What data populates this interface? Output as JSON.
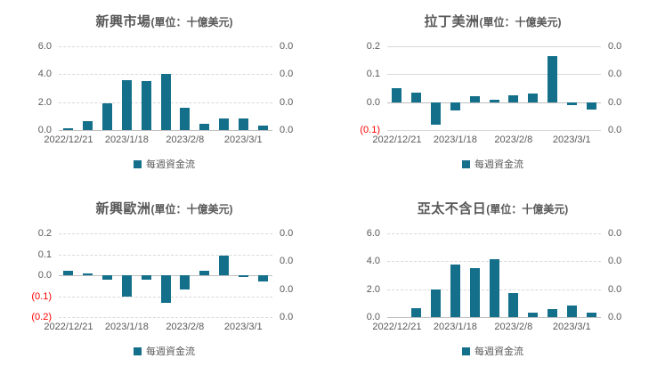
{
  "page": {
    "background": "#FFFFFF"
  },
  "colors": {
    "bar": "#14708A",
    "grid": "#D9D9D9",
    "zero_line": "#BFBFBF",
    "tick_label": "#595959",
    "negative_tick_label": "#FF0000",
    "title": "#595959"
  },
  "chart_data": [
    {
      "type": "bar",
      "title": "新興市場",
      "subtitle": "(單位：十億美元)",
      "legend": "每週資金流",
      "legend_position": "bottom",
      "grid_style": "dashed",
      "ylim": [
        0,
        6
      ],
      "yticks_left": [
        {
          "value": 6,
          "label": "6.0",
          "negative": false
        },
        {
          "value": 4,
          "label": "4.0",
          "negative": false
        },
        {
          "value": 2,
          "label": "2.0",
          "negative": false
        },
        {
          "value": 0,
          "label": "0.0",
          "negative": false
        }
      ],
      "yticks_right": [
        "0.0",
        "0.0",
        "0.0",
        "0.0"
      ],
      "x_tick_labels": [
        "2022/12/21",
        "2023/1/18",
        "2023/2/8",
        "2023/3/1"
      ],
      "x_tick_slots": [
        0,
        3,
        6,
        9
      ],
      "values": [
        0.1,
        0.65,
        1.9,
        3.6,
        3.5,
        4.0,
        1.6,
        0.45,
        0.85,
        0.8,
        0.3
      ]
    },
    {
      "type": "bar",
      "title": "拉丁美洲",
      "subtitle": "(單位：十億美元)",
      "legend": "每週資金流",
      "legend_position": "bottom",
      "grid_style": "solid",
      "ylim": [
        -0.1,
        0.2
      ],
      "yticks_left": [
        {
          "value": 0.2,
          "label": "0.2",
          "negative": false
        },
        {
          "value": 0.1,
          "label": "0.1",
          "negative": false
        },
        {
          "value": 0,
          "label": "0.0",
          "negative": false
        },
        {
          "value": -0.1,
          "label": "(0.1)",
          "negative": true
        }
      ],
      "yticks_right": [
        "0.0",
        "0.0",
        "0.0",
        "0.0"
      ],
      "x_tick_labels": [
        "2022/12/21",
        "2023/1/18",
        "2023/2/8",
        "2023/3/1"
      ],
      "x_tick_slots": [
        0,
        3,
        6,
        9
      ],
      "values": [
        0.05,
        0.035,
        -0.08,
        -0.03,
        0.02,
        0.01,
        0.025,
        0.03,
        0.165,
        -0.012,
        -0.028
      ]
    },
    {
      "type": "bar",
      "title": "新興歐洲",
      "subtitle": "(單位：十億美元)",
      "legend": "每週資金流",
      "legend_position": "bottom",
      "grid_style": "dashed",
      "ylim": [
        -0.2,
        0.2
      ],
      "yticks_left": [
        {
          "value": 0.2,
          "label": "0.2",
          "negative": false
        },
        {
          "value": 0.1,
          "label": "0.1",
          "negative": false
        },
        {
          "value": 0,
          "label": "0.0",
          "negative": false
        },
        {
          "value": -0.1,
          "label": "(0.1)",
          "negative": true
        },
        {
          "value": -0.2,
          "label": "(0.2)",
          "negative": true
        }
      ],
      "yticks_right": [
        "0.0",
        "0.0",
        "0.0",
        "0.0"
      ],
      "x_tick_labels": [
        "2022/12/21",
        "2023/1/18",
        "2023/2/8",
        "2023/3/1"
      ],
      "x_tick_slots": [
        0,
        3,
        6,
        9
      ],
      "values": [
        0.02,
        0.01,
        -0.02,
        -0.1,
        -0.02,
        -0.133,
        -0.07,
        0.02,
        0.095,
        -0.007,
        -0.03
      ]
    },
    {
      "type": "bar",
      "title": "亞太不含日",
      "subtitle": "(單位：十億美元)",
      "legend": "每週資金流",
      "legend_position": "bottom",
      "grid_style": "dashed",
      "ylim": [
        0,
        6
      ],
      "yticks_left": [
        {
          "value": 6,
          "label": "6.0",
          "negative": false
        },
        {
          "value": 4,
          "label": "4.0",
          "negative": false
        },
        {
          "value": 2,
          "label": "2.0",
          "negative": false
        },
        {
          "value": 0,
          "label": "0.0",
          "negative": false
        }
      ],
      "yticks_right": [
        "0.0",
        "0.0",
        "0.0",
        "0.0"
      ],
      "x_tick_labels": [
        "2022/12/21",
        "2023/1/18",
        "2023/2/8",
        "2023/3/1"
      ],
      "x_tick_slots": [
        0,
        3,
        6,
        9
      ],
      "values": [
        0,
        0.65,
        2.0,
        3.75,
        3.5,
        4.15,
        1.75,
        0.35,
        0.6,
        0.85,
        0.35
      ]
    }
  ]
}
